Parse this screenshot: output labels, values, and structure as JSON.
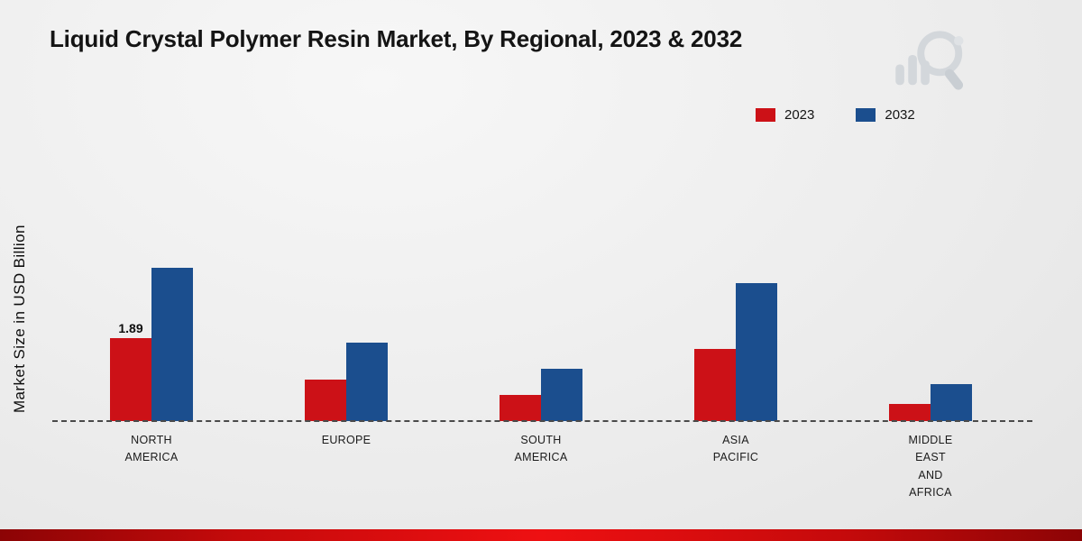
{
  "title": "Liquid Crystal Polymer Resin Market, By Regional, 2023 & 2032",
  "ylabel": "Market Size in USD Billion",
  "legend": {
    "items": [
      {
        "label": "2023",
        "color": "#cc1117"
      },
      {
        "label": "2032",
        "color": "#1b4e8e"
      }
    ]
  },
  "chart_data": {
    "type": "bar",
    "title": "Liquid Crystal Polymer Resin Market, By Regional, 2023 & 2032",
    "xlabel": "",
    "ylabel": "Market Size in USD Billion",
    "categories": [
      "North America",
      "Europe",
      "South America",
      "Asia Pacific",
      "Middle East and Africa"
    ],
    "category_lines": [
      [
        "NORTH",
        "AMERICA"
      ],
      [
        "EUROPE"
      ],
      [
        "SOUTH",
        "AMERICA"
      ],
      [
        "ASIA",
        "PACIFIC"
      ],
      [
        "MIDDLE",
        "EAST",
        "AND",
        "AFRICA"
      ]
    ],
    "series": [
      {
        "name": "2023",
        "color": "#cc1117",
        "values": [
          1.89,
          0.95,
          0.6,
          1.65,
          0.4
        ]
      },
      {
        "name": "2032",
        "color": "#1b4e8e",
        "values": [
          3.5,
          1.8,
          1.2,
          3.15,
          0.85
        ]
      }
    ],
    "data_labels": [
      {
        "series_index": 0,
        "category_index": 0,
        "text": "1.89"
      }
    ],
    "ylim": [
      0,
      4.2
    ],
    "grid": false,
    "baseline_style": "dashed",
    "legend_position": "top-right"
  },
  "footer": {
    "accent_color": "#c50a0b"
  }
}
